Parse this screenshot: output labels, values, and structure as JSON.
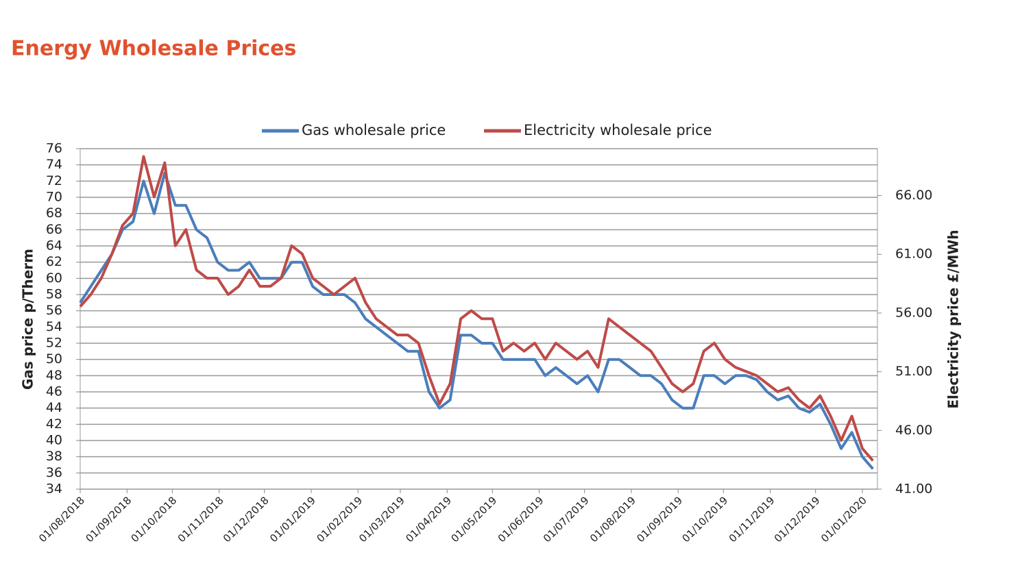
{
  "title": "Energy Wholesale Prices",
  "chart_data": {
    "type": "line",
    "ylabel": "Gas price p/Therm",
    "y2label": "Electricity price £/MWh",
    "x": [
      "01/08/2018",
      "08/08/2018",
      "15/08/2018",
      "22/08/2018",
      "29/08/2018",
      "05/09/2018",
      "12/09/2018",
      "19/09/2018",
      "26/09/2018",
      "03/10/2018",
      "10/10/2018",
      "17/10/2018",
      "24/10/2018",
      "31/10/2018",
      "07/11/2018",
      "14/11/2018",
      "21/11/2018",
      "28/11/2018",
      "05/12/2018",
      "12/12/2018",
      "19/12/2018",
      "26/12/2018",
      "02/01/2019",
      "09/01/2019",
      "16/01/2019",
      "23/01/2019",
      "30/01/2019",
      "06/02/2019",
      "13/02/2019",
      "20/02/2019",
      "27/02/2019",
      "06/03/2019",
      "13/03/2019",
      "20/03/2019",
      "27/03/2019",
      "03/04/2019",
      "10/04/2019",
      "17/04/2019",
      "24/04/2019",
      "01/05/2019",
      "08/05/2019",
      "15/05/2019",
      "22/05/2019",
      "29/05/2019",
      "05/06/2019",
      "12/06/2019",
      "19/06/2019",
      "26/06/2019",
      "03/07/2019",
      "10/07/2019",
      "17/07/2019",
      "24/07/2019",
      "31/07/2019",
      "07/08/2019",
      "14/08/2019",
      "21/08/2019",
      "28/08/2019",
      "04/09/2019",
      "11/09/2019",
      "18/09/2019",
      "25/09/2019",
      "02/10/2019",
      "09/10/2019",
      "16/10/2019",
      "23/10/2019",
      "30/10/2019",
      "06/11/2019",
      "13/11/2019",
      "20/11/2019",
      "27/11/2019",
      "04/12/2019",
      "11/12/2019",
      "18/12/2019",
      "25/12/2019",
      "01/01/2020",
      "08/01/2020"
    ],
    "series": [
      {
        "name": "Gas wholesale price",
        "color": "#4a7ebb",
        "axis": "y",
        "values": [
          57,
          59,
          61,
          63,
          66,
          67,
          72,
          68,
          73,
          69,
          69,
          66,
          65,
          62,
          61,
          61,
          62,
          60,
          60,
          60,
          62,
          62,
          59,
          58,
          58,
          58,
          57,
          55,
          54,
          53,
          52,
          51,
          51,
          46,
          44,
          45,
          53,
          53,
          52,
          52,
          50,
          50,
          50,
          50,
          48,
          49,
          48,
          47,
          48,
          46,
          50,
          50,
          49,
          48,
          48,
          47,
          45,
          44,
          44,
          48,
          48,
          47,
          48,
          48,
          47.5,
          46,
          45,
          45.5,
          44,
          43.5,
          44.5,
          42,
          39,
          41,
          38,
          36.5
        ]
      },
      {
        "name": "Electricity wholesale price",
        "color": "#be4b48",
        "axis": "y2",
        "values": [
          56.55,
          57.58,
          58.97,
          61.04,
          63.46,
          64.49,
          69.33,
          65.88,
          68.8,
          61.73,
          63.11,
          59.66,
          58.97,
          58.97,
          57.58,
          58.28,
          59.66,
          58.28,
          58.28,
          58.97,
          61.73,
          61.04,
          58.97,
          58.28,
          57.58,
          58.28,
          58.97,
          56.89,
          55.51,
          54.82,
          54.13,
          54.13,
          53.44,
          50.67,
          48.26,
          49.98,
          55.51,
          56.2,
          55.51,
          55.51,
          52.75,
          53.44,
          52.75,
          53.44,
          52.06,
          53.44,
          52.75,
          52.06,
          52.75,
          51.37,
          55.51,
          54.82,
          54.13,
          53.44,
          52.75,
          51.37,
          49.98,
          49.29,
          49.98,
          52.75,
          53.44,
          52.06,
          51.37,
          51.02,
          50.67,
          49.98,
          49.29,
          49.64,
          48.6,
          47.91,
          48.95,
          47.22,
          45.15,
          47.22,
          44.46,
          43.42
        ]
      }
    ],
    "xlim": [
      "01/08/2018",
      "11/01/2020"
    ],
    "xticks": [
      "01/08/2018",
      "01/09/2018",
      "01/10/2018",
      "01/11/2018",
      "01/12/2018",
      "01/01/2019",
      "01/02/2019",
      "01/03/2019",
      "01/04/2019",
      "01/05/2019",
      "01/06/2019",
      "01/07/2019",
      "01/08/2019",
      "01/09/2019",
      "01/10/2019",
      "01/11/2019",
      "01/12/2019",
      "01/01/2020"
    ],
    "ylim": [
      34,
      76
    ],
    "yticks": [
      34,
      36,
      38,
      40,
      42,
      44,
      46,
      48,
      50,
      52,
      54,
      56,
      58,
      60,
      62,
      64,
      66,
      68,
      70,
      72,
      74,
      76
    ],
    "y2lim": [
      41,
      70
    ],
    "y2ticks": [
      {
        "value": 41,
        "label": "41.00"
      },
      {
        "value": 46,
        "label": "46.00"
      },
      {
        "value": 51,
        "label": "51.00"
      },
      {
        "value": 56,
        "label": "56.00"
      },
      {
        "value": 61,
        "label": "61.00"
      },
      {
        "value": 66,
        "label": "66.00"
      }
    ],
    "grid": true,
    "legend": "top"
  }
}
